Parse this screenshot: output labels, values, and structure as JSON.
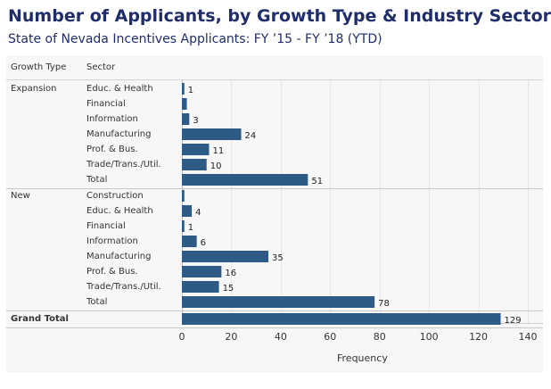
{
  "title": "Number of Applicants, by Growth Type & Industry Sector",
  "subtitle": "State of Nevada Incentives Applicants:  FY ’15 - FY ’18 (YTD)",
  "colors": {
    "bar": "#2e5a86",
    "title": "#1f2d6b"
  },
  "headers": {
    "growth_type": "Growth Type",
    "sector": "Sector"
  },
  "chart_data": {
    "type": "bar",
    "orientation": "horizontal",
    "xlabel": "Frequency",
    "xlim": [
      0,
      140
    ],
    "xticks": [
      0,
      20,
      40,
      60,
      80,
      100,
      120,
      140
    ],
    "grid": true,
    "groups": [
      {
        "name": "Expansion",
        "rows": [
          {
            "sector": "Educ. & Health",
            "value": 1,
            "label": "1"
          },
          {
            "sector": "Financial",
            "value": 2,
            "label": ""
          },
          {
            "sector": "Information",
            "value": 3,
            "label": "3"
          },
          {
            "sector": "Manufacturing",
            "value": 24,
            "label": "24"
          },
          {
            "sector": "Prof. & Bus.",
            "value": 11,
            "label": "11"
          },
          {
            "sector": "Trade/Trans./Util.",
            "value": 10,
            "label": "10"
          },
          {
            "sector": "Total",
            "value": 51,
            "label": "51"
          }
        ]
      },
      {
        "name": "New",
        "rows": [
          {
            "sector": "Construction",
            "value": 1,
            "label": ""
          },
          {
            "sector": "Educ. & Health",
            "value": 4,
            "label": "4"
          },
          {
            "sector": "Financial",
            "value": 1,
            "label": "1"
          },
          {
            "sector": "Information",
            "value": 6,
            "label": "6"
          },
          {
            "sector": "Manufacturing",
            "value": 35,
            "label": "35"
          },
          {
            "sector": "Prof. & Bus.",
            "value": 16,
            "label": "16"
          },
          {
            "sector": "Trade/Trans./Util.",
            "value": 15,
            "label": "15"
          },
          {
            "sector": "Total",
            "value": 78,
            "label": "78"
          }
        ]
      }
    ],
    "grand_total": {
      "name": "Grand Total",
      "value": 129,
      "label": "129"
    }
  }
}
